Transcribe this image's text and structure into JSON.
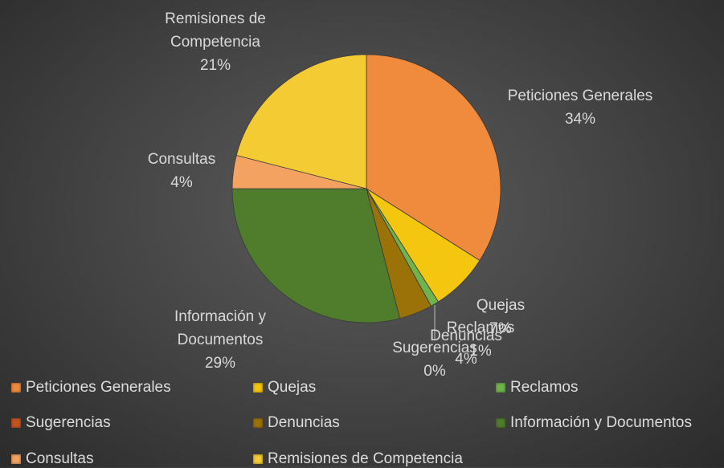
{
  "chart_data": {
    "type": "pie",
    "categories": [
      "Peticiones Generales",
      "Quejas",
      "Reclamos",
      "Sugerencias",
      "Denuncias",
      "Información y Documentos",
      "Consultas",
      "Remisiones de Competencia"
    ],
    "values": [
      34,
      7,
      1,
      0,
      4,
      29,
      4,
      21
    ],
    "value_labels": [
      "34%",
      "7%",
      "1%",
      "0%",
      "4%",
      "29%",
      "4%",
      "21%"
    ],
    "colors": [
      "#f08a3c",
      "#f5c60f",
      "#6fb34d",
      "#c4541f",
      "#9b7208",
      "#4f7d2c",
      "#f4a262",
      "#f4cb33"
    ],
    "legend": "bottom"
  }
}
